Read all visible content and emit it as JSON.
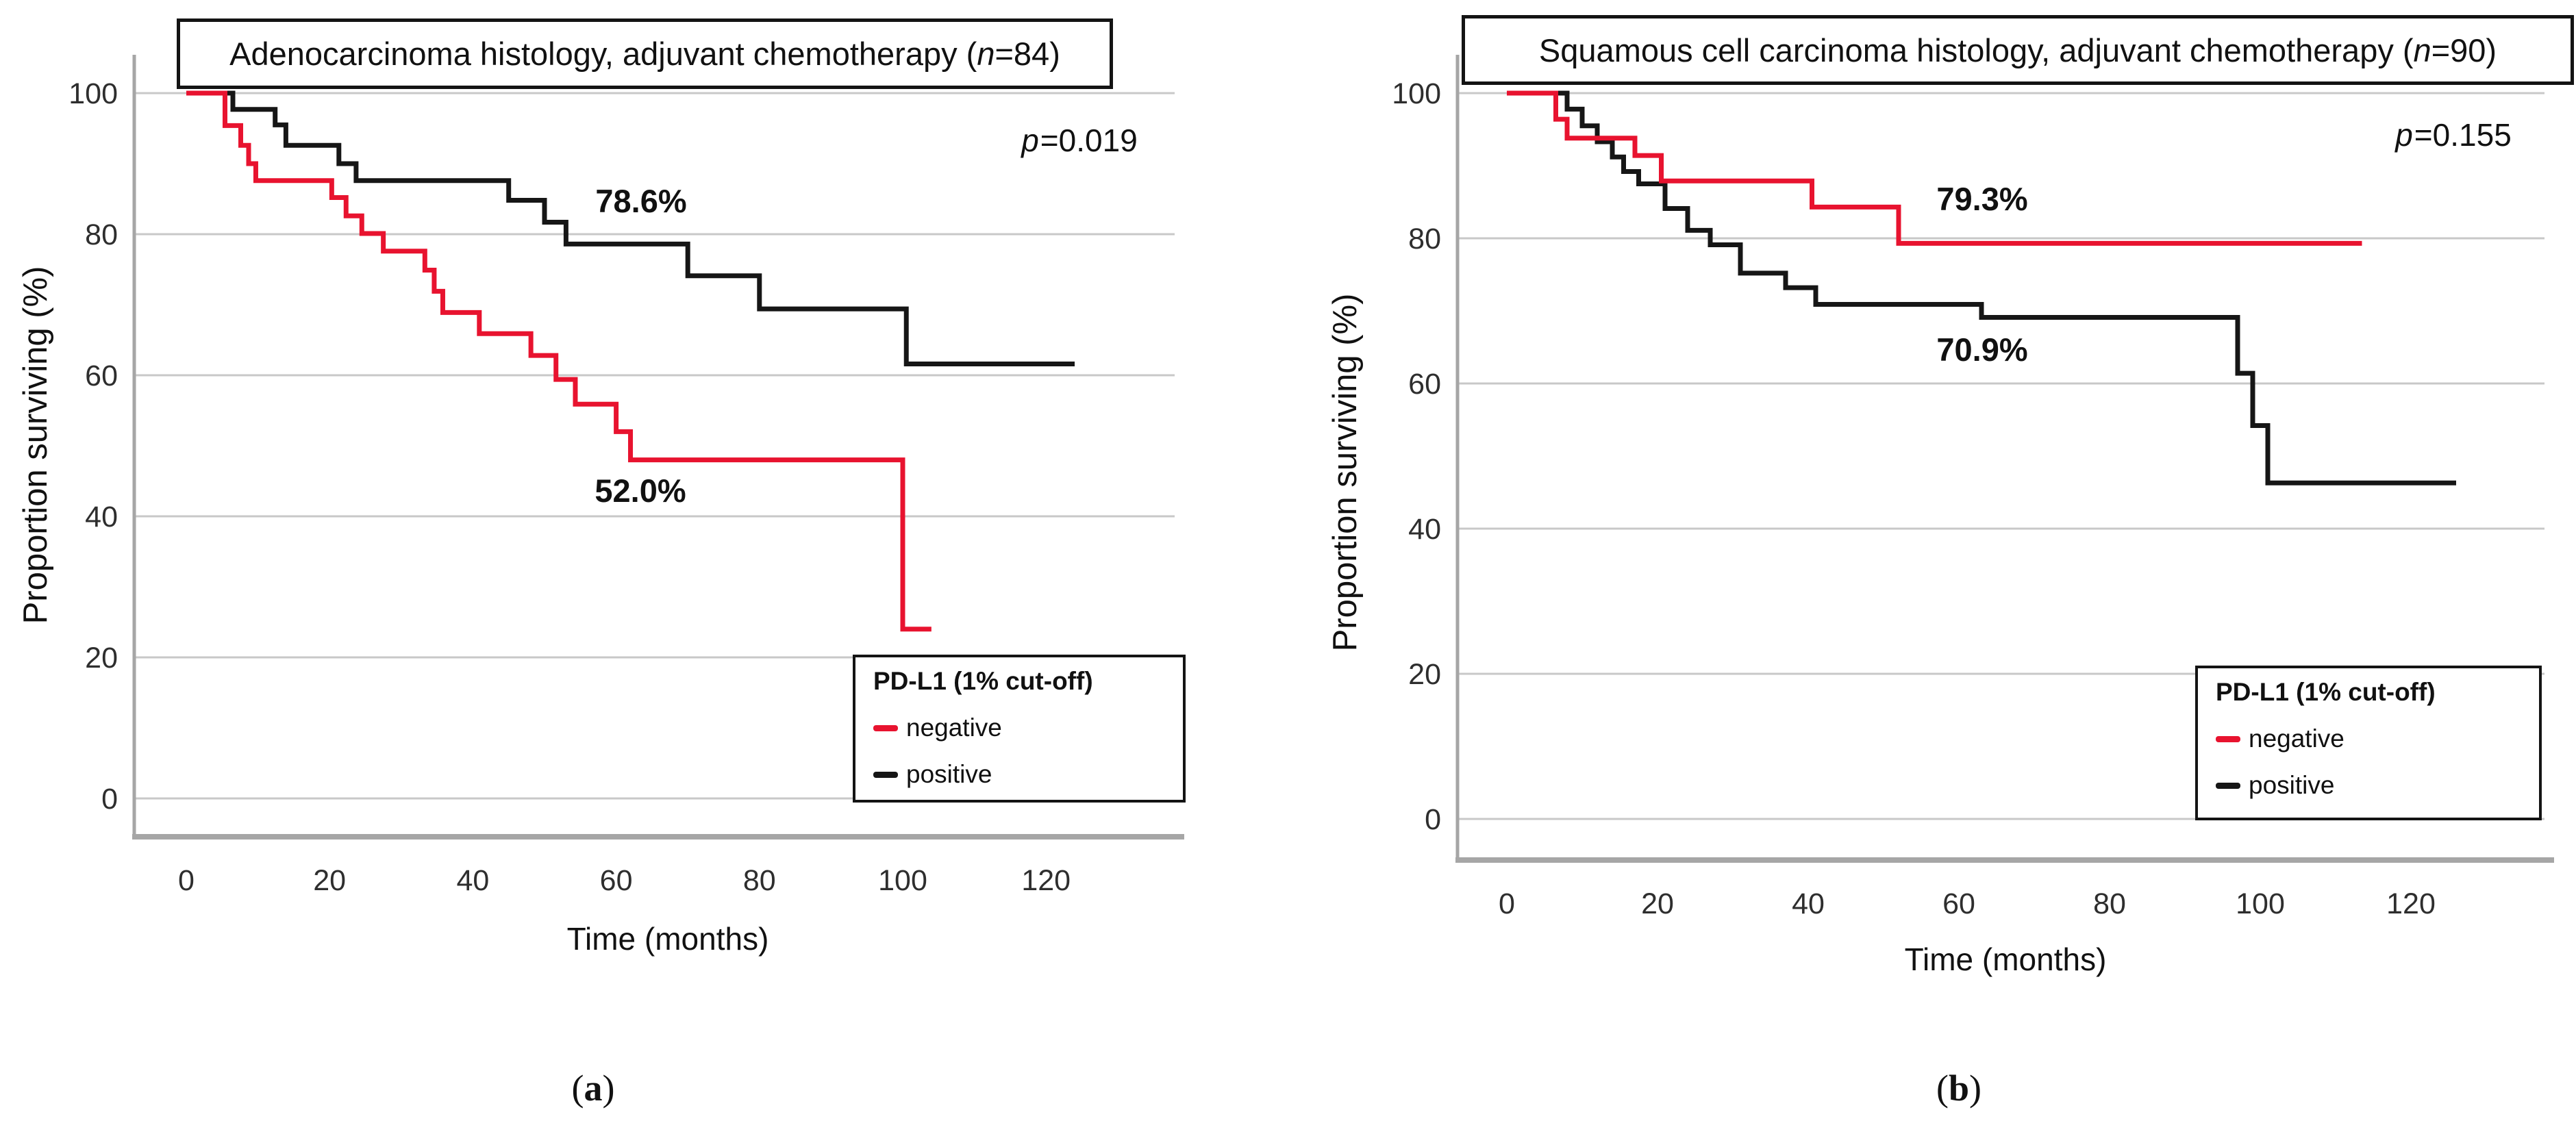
{
  "colors": {
    "negative": "#e8132f",
    "positive": "#161616",
    "grid": "#c8c8c8",
    "axis": "#a6a6a6",
    "tick_text": "#2e2e2e"
  },
  "panels": [
    {
      "caption": {
        "pre": "(",
        "label": "a",
        "post": ")"
      },
      "title": {
        "pre": "Adenocarcinoma histology, adjuvant chemotherapy (",
        "var": "n",
        "post": "=84)"
      },
      "pvalue": {
        "var": "p",
        "value": "=0.019"
      },
      "xlabel": "Time (months)",
      "ylabel": "Proportion surviving (%)",
      "xticks": [
        0,
        20,
        40,
        60,
        80,
        100,
        120
      ],
      "yticks": [
        100,
        80,
        60,
        40,
        20,
        0
      ],
      "annotations": [
        "78.6%",
        "52.0%"
      ],
      "legend": {
        "title": "PD-L1 (1% cut-off)",
        "items": [
          {
            "label": "negative",
            "color_key": "negative"
          },
          {
            "label": "positive",
            "color_key": "positive"
          }
        ]
      }
    },
    {
      "caption": {
        "pre": "(",
        "label": "b",
        "post": ")"
      },
      "title": {
        "pre": "Squamous cell carcinoma histology, adjuvant chemotherapy (",
        "var": "n",
        "post": "=90)"
      },
      "pvalue": {
        "var": "p",
        "value": "=0.155"
      },
      "xlabel": "Time (months)",
      "ylabel": "Proportion surviving (%)",
      "xticks": [
        0,
        20,
        40,
        60,
        80,
        100,
        120
      ],
      "yticks": [
        100,
        80,
        60,
        40,
        20,
        0
      ],
      "annotations": [
        "79.3%",
        "70.9%"
      ],
      "legend": {
        "title": "PD-L1 (1% cut-off)",
        "items": [
          {
            "label": "negative",
            "color_key": "negative"
          },
          {
            "label": "positive",
            "color_key": "positive"
          }
        ]
      }
    }
  ],
  "chart_data": {
    "type": "line",
    "subtype": "kaplan-meier-step",
    "xlabel": "Time (months)",
    "ylabel": "Proportion surviving (%)",
    "x_range": [
      0,
      135
    ],
    "y_range": [
      0,
      100
    ],
    "grid": "horizontal-only",
    "panels": [
      {
        "name": "Adenocarcinoma histology, adjuvant chemotherapy",
        "n": 84,
        "p_value": "p=0.019",
        "legend_title": "PD-L1 (1% cut-off)",
        "annotations": [
          {
            "text": "78.6%",
            "series": "positive",
            "meaning": "5-year survival"
          },
          {
            "text": "52.0%",
            "series": "negative",
            "meaning": "5-year survival"
          }
        ],
        "series": [
          {
            "name": "negative",
            "color_key": "negative",
            "start": [
              0,
              100
            ],
            "end_t": 104,
            "steps": [
              [
                5.4,
                95.4
              ],
              [
                7.6,
                92.6
              ],
              [
                8.7,
                90.0
              ],
              [
                9.7,
                87.6
              ],
              [
                20.3,
                85.2
              ],
              [
                22.3,
                82.6
              ],
              [
                24.5,
                80.1
              ],
              [
                27.5,
                77.6
              ],
              [
                33.3,
                74.9
              ],
              [
                34.6,
                71.9
              ],
              [
                35.8,
                68.9
              ],
              [
                40.9,
                65.9
              ],
              [
                48.1,
                62.8
              ],
              [
                51.6,
                59.4
              ],
              [
                54.3,
                55.9
              ],
              [
                60,
                52.0
              ],
              [
                62,
                48.0
              ],
              [
                100,
                24.0
              ]
            ]
          },
          {
            "name": "positive",
            "color_key": "positive",
            "start": [
              0,
              100
            ],
            "end_t": 124,
            "steps": [
              [
                6.5,
                97.7
              ],
              [
                12.4,
                95.5
              ],
              [
                13.9,
                92.6
              ],
              [
                21.3,
                90.0
              ],
              [
                23.7,
                87.6
              ],
              [
                45,
                84.8
              ],
              [
                50,
                81.7
              ],
              [
                53,
                78.6
              ],
              [
                70,
                74.1
              ],
              [
                80,
                69.4
              ],
              [
                100.5,
                61.6
              ]
            ]
          }
        ]
      },
      {
        "name": "Squamous cell carcinoma histology, adjuvant chemotherapy",
        "n": 90,
        "p_value": "p=0.155",
        "legend_title": "PD-L1 (1% cut-off)",
        "annotations": [
          {
            "text": "79.3%",
            "series": "negative",
            "meaning": "5-year survival"
          },
          {
            "text": "70.9%",
            "series": "positive",
            "meaning": "5-year survival"
          }
        ],
        "series": [
          {
            "name": "negative",
            "color_key": "negative",
            "start": [
              0,
              100
            ],
            "end_t": 113.5,
            "steps": [
              [
                6.5,
                96.4
              ],
              [
                8,
                93.8
              ],
              [
                17,
                91.4
              ],
              [
                20.5,
                87.9
              ],
              [
                40.5,
                84.3
              ],
              [
                52,
                79.3
              ]
            ]
          },
          {
            "name": "positive",
            "color_key": "positive",
            "start": [
              0,
              100
            ],
            "end_t": 126,
            "steps": [
              [
                8,
                97.8
              ],
              [
                10,
                95.5
              ],
              [
                12,
                93.3
              ],
              [
                14,
                91.2
              ],
              [
                15.5,
                89.2
              ],
              [
                17.5,
                87.5
              ],
              [
                21,
                84.1
              ],
              [
                24,
                81.1
              ],
              [
                27,
                79.1
              ],
              [
                31,
                75.2
              ],
              [
                37,
                73.2
              ],
              [
                41,
                70.9
              ],
              [
                63,
                69.1
              ],
              [
                97,
                61.4
              ],
              [
                99,
                54.2
              ],
              [
                101,
                46.3
              ]
            ]
          }
        ]
      }
    ]
  }
}
